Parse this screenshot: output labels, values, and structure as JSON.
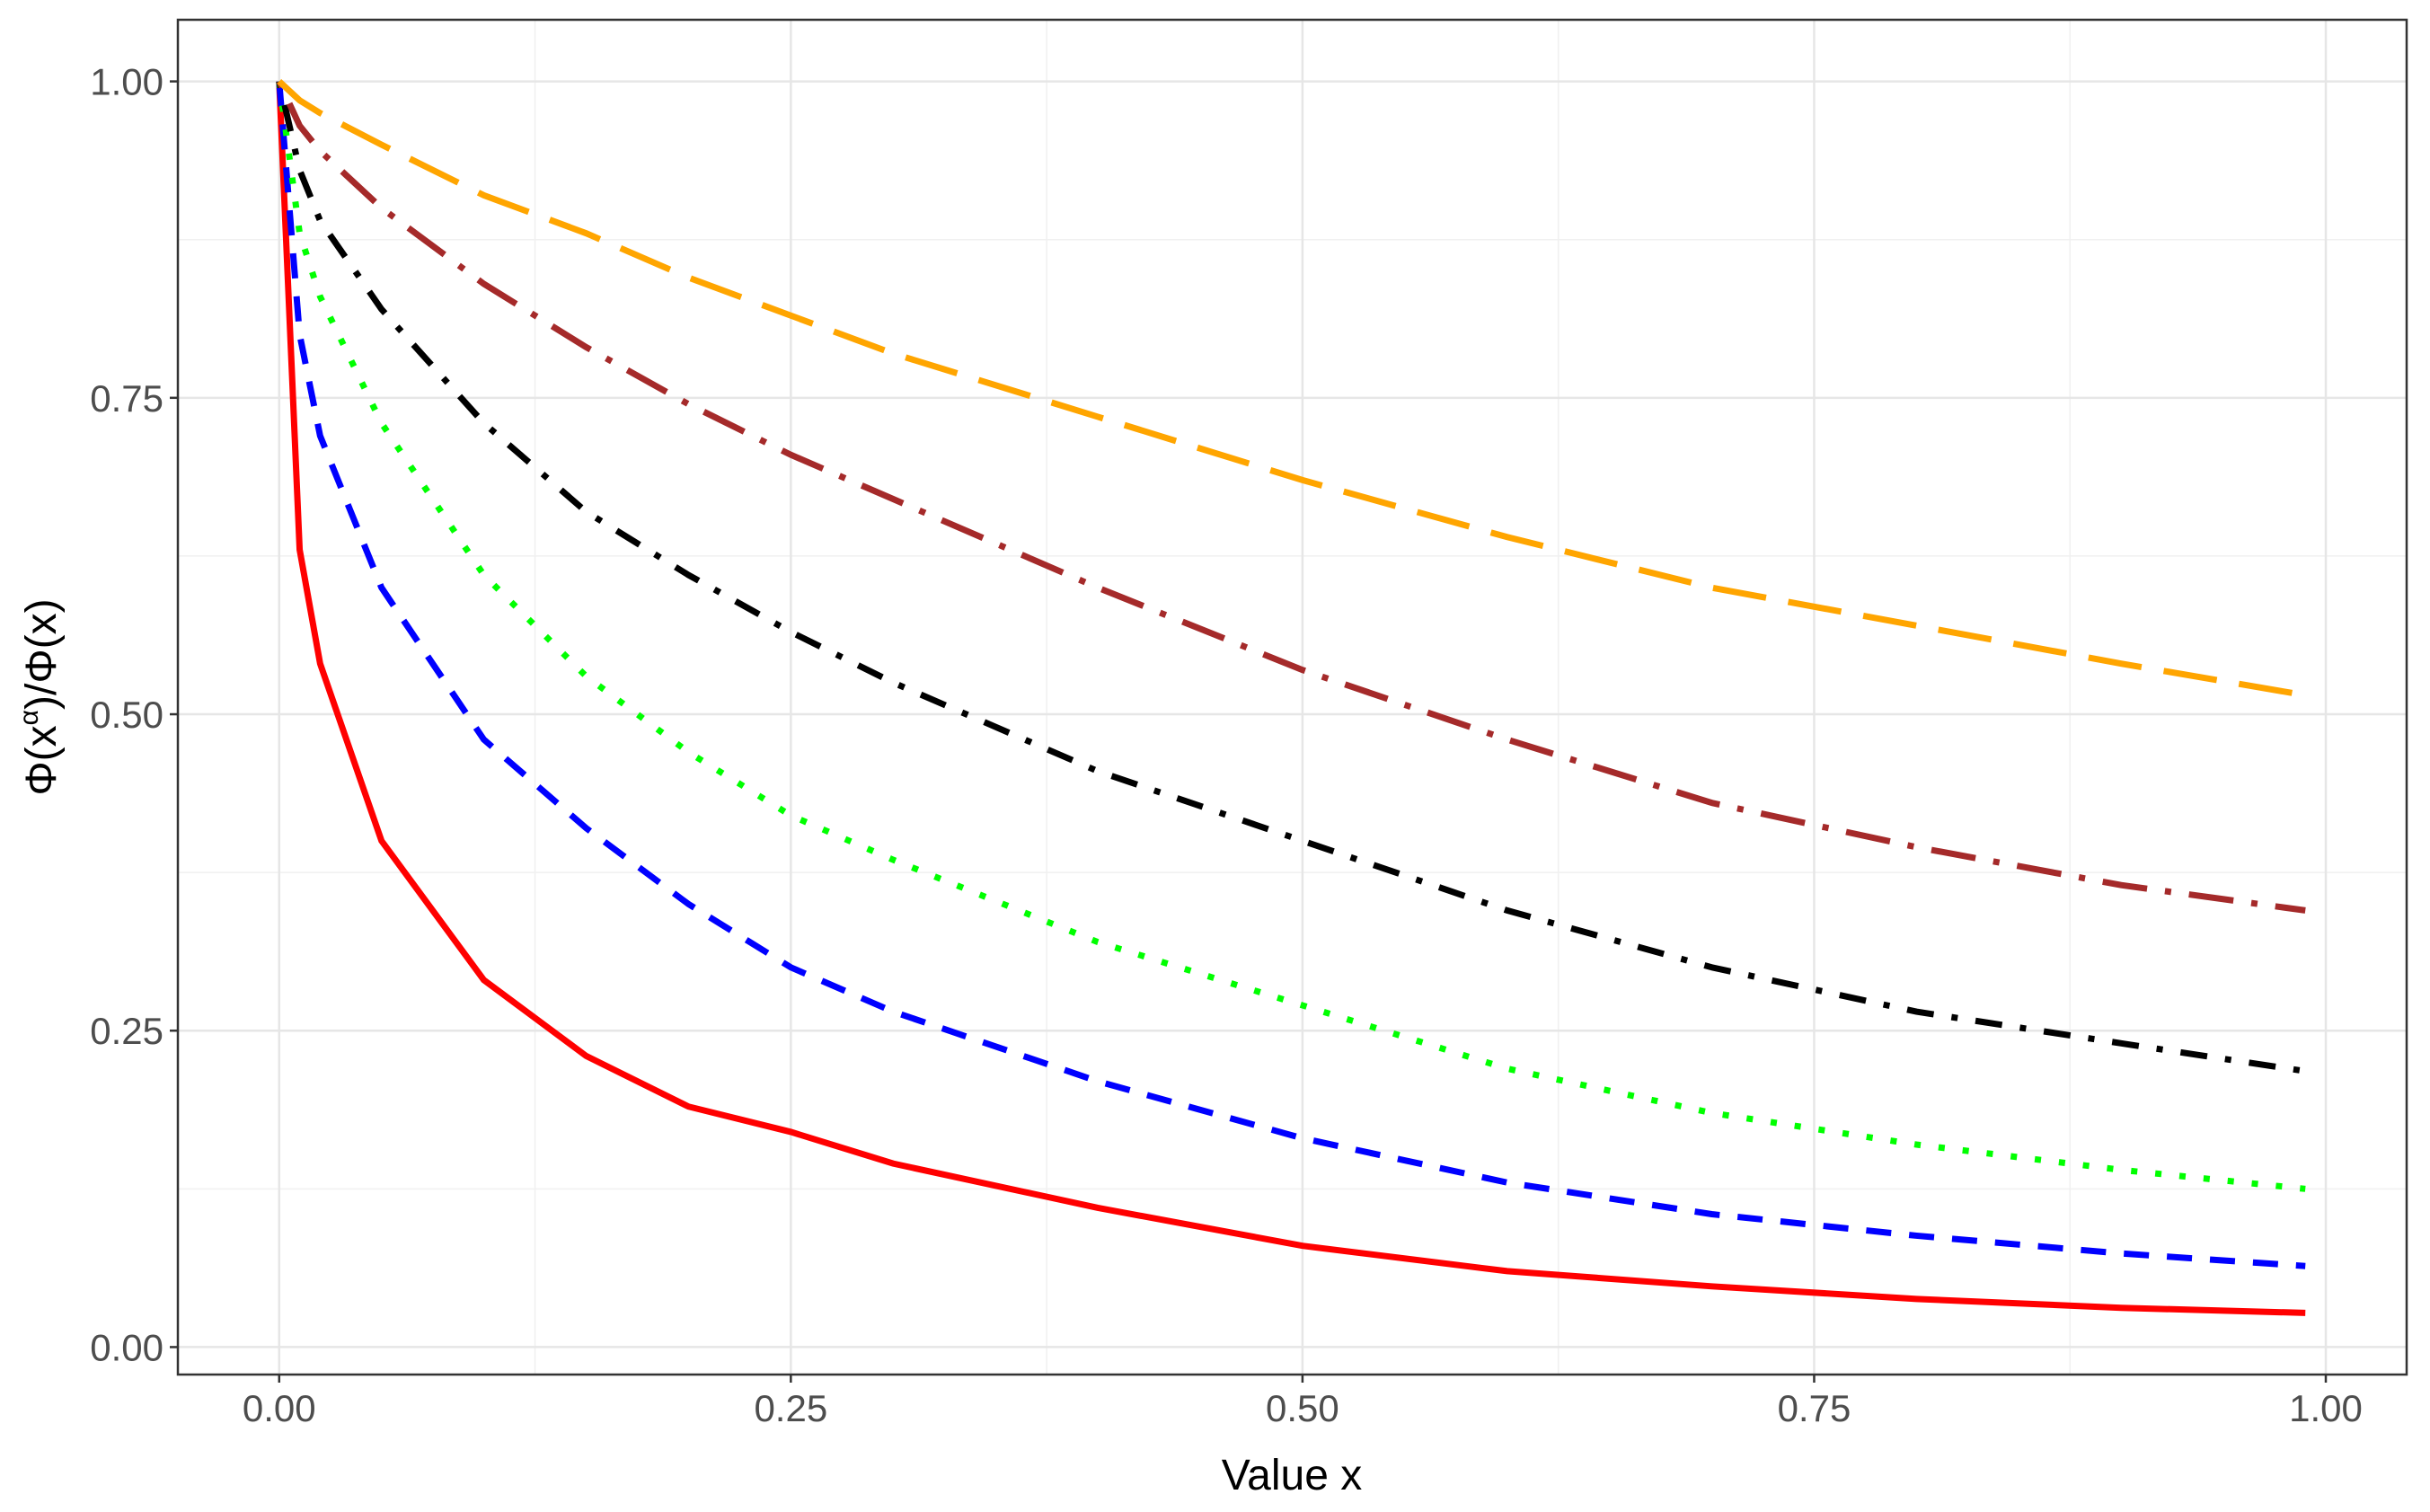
{
  "chart_data": {
    "type": "line",
    "xlabel": "Value x",
    "ylabel": [
      "Φ(x",
      "α",
      ")/Φ(x)"
    ],
    "x": [
      0,
      0.01,
      0.02,
      0.05,
      0.1,
      0.15,
      0.2,
      0.25,
      0.3,
      0.4,
      0.5,
      0.6,
      0.7,
      0.8,
      0.9,
      0.99
    ],
    "series": [
      {
        "color": "#ff0000",
        "dash": "solid",
        "values": [
          1,
          0.63,
          0.54,
          0.4,
          0.29,
          0.23,
          0.19,
          0.17,
          0.145,
          0.11,
          0.08,
          0.06,
          0.048,
          0.038,
          0.031,
          0.027
        ]
      },
      {
        "color": "#0000ff",
        "dash": "dashed",
        "values": [
          1,
          0.8,
          0.72,
          0.6,
          0.48,
          0.41,
          0.35,
          0.3,
          0.265,
          0.21,
          0.165,
          0.13,
          0.105,
          0.088,
          0.074,
          0.064
        ]
      },
      {
        "color": "#00ff00",
        "dash": "dotted",
        "values": [
          1,
          0.88,
          0.83,
          0.73,
          0.61,
          0.53,
          0.47,
          0.42,
          0.385,
          0.32,
          0.27,
          0.22,
          0.185,
          0.16,
          0.14,
          0.125
        ]
      },
      {
        "color": "#000000",
        "dash": "dotdash",
        "values": [
          1,
          0.93,
          0.89,
          0.82,
          0.73,
          0.66,
          0.61,
          0.565,
          0.525,
          0.455,
          0.4,
          0.345,
          0.3,
          0.265,
          0.24,
          0.218
        ]
      },
      {
        "color": "#a52a2a",
        "dash": "longdotdash",
        "values": [
          1,
          0.965,
          0.945,
          0.9,
          0.84,
          0.79,
          0.745,
          0.705,
          0.67,
          0.6,
          0.535,
          0.48,
          0.43,
          0.395,
          0.365,
          0.345
        ]
      },
      {
        "color": "#ffa500",
        "dash": "longdash",
        "values": [
          1,
          0.985,
          0.975,
          0.95,
          0.91,
          0.88,
          0.845,
          0.815,
          0.785,
          0.735,
          0.685,
          0.64,
          0.6,
          0.57,
          0.54,
          0.515
        ]
      }
    ],
    "xlim": [
      -0.0495,
      1.0395
    ],
    "ylim": [
      -0.0217,
      1.0487
    ],
    "xticks": [
      {
        "value": 0,
        "label": "0.00"
      },
      {
        "value": 0.25,
        "label": "0.25"
      },
      {
        "value": 0.5,
        "label": "0.50"
      },
      {
        "value": 0.75,
        "label": "0.75"
      },
      {
        "value": 1,
        "label": "1.00"
      }
    ],
    "yticks": [
      {
        "value": 0,
        "label": "0.00"
      },
      {
        "value": 0.25,
        "label": "0.25"
      },
      {
        "value": 0.5,
        "label": "0.50"
      },
      {
        "value": 0.75,
        "label": "0.75"
      },
      {
        "value": 1,
        "label": "1.00"
      }
    ],
    "grid": true,
    "minor_grid": true
  }
}
